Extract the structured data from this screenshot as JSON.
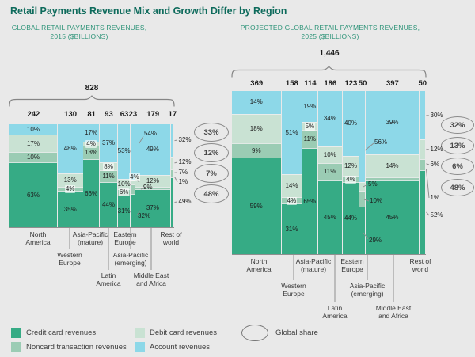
{
  "title": "Retail Payments Revenue Mix and Growth Differ by Region",
  "legend": {
    "items": [
      {
        "label": "Credit card revenues",
        "key": "credit",
        "color": "#36ab85"
      },
      {
        "label": "Noncard transaction revenues",
        "key": "noncard",
        "color": "#9bccb4"
      },
      {
        "label": "Debit card revenues",
        "key": "debit",
        "color": "#c9e2d3"
      },
      {
        "label": "Account revenues",
        "key": "account",
        "color": "#8dd8e8"
      }
    ],
    "global_share_label": "Global share"
  },
  "colors": {
    "account": "#8dd8e8",
    "debit": "#c9e2d3",
    "noncard": "#9bccb4",
    "credit": "#36ab85",
    "sliver": "#9bccb4",
    "background": "#e9e9e9",
    "title": "#0e6b5c",
    "subtitle": "#2f9479"
  },
  "chart_data": [
    {
      "type": "marimekko-stacked-bar",
      "header_lines": [
        "GLOBAL RETAIL PAYMENTS REVENUES,",
        "2015 ($BILLIONS)"
      ],
      "total_label": "828",
      "stack_order_top_to_bottom": [
        "account",
        "debit",
        "noncard",
        "credit"
      ],
      "columns": [
        {
          "value": "242",
          "region": [
            "North",
            "America"
          ],
          "segments": [
            {
              "k": "account",
              "v": 10
            },
            {
              "k": "debit",
              "v": 17
            },
            {
              "k": "noncard",
              "v": 10
            },
            {
              "k": "credit",
              "v": 63
            }
          ]
        },
        {
          "value": "130",
          "region": [
            "Western",
            "Europe"
          ],
          "segments": [
            {
              "k": "account",
              "v": 48
            },
            {
              "k": "debit",
              "v": 13
            },
            {
              "k": "noncard",
              "v": 4
            },
            {
              "k": "credit",
              "v": 35
            }
          ]
        },
        {
          "value": "81",
          "region": [
            "Asia-Pacific",
            "(mature)"
          ],
          "segments": [
            {
              "k": "account",
              "v": 17
            },
            {
              "k": "debit",
              "v": 4
            },
            {
              "k": "noncard",
              "v": 13
            },
            {
              "k": "credit",
              "v": 66
            }
          ]
        },
        {
          "value": "93",
          "region": [
            "Latin",
            "America"
          ],
          "segments": [
            {
              "k": "account",
              "v": 37
            },
            {
              "k": "debit",
              "v": 8
            },
            {
              "k": "noncard",
              "v": 11
            },
            {
              "k": "credit",
              "v": 44
            }
          ]
        },
        {
          "value": "63",
          "region": [
            "Eastern",
            "Europe"
          ],
          "segments": [
            {
              "k": "account",
              "v": 53
            },
            {
              "k": "debit",
              "v": 10
            },
            {
              "k": "noncard",
              "v": 6
            },
            {
              "k": "credit",
              "v": 31
            }
          ]
        },
        {
          "value": "23",
          "region": [
            "Asia-Pacific",
            "(emerging)"
          ],
          "label_mode": "callout",
          "segments": [
            {
              "k": "account",
              "v": 54
            },
            {
              "k": "debit",
              "v": 4
            },
            {
              "k": "noncard",
              "v": 9
            },
            {
              "k": "credit",
              "v": 32
            }
          ]
        },
        {
          "value": "179",
          "region": [
            "Middle East",
            "and Africa"
          ],
          "segments": [
            {
              "k": "account",
              "v": 49
            },
            {
              "k": "debit",
              "v": 12
            },
            {
              "k": "noncard",
              "v": 2,
              "hide": true
            },
            {
              "k": "credit",
              "v": 37
            }
          ]
        },
        {
          "value": "17",
          "region": [
            "Rest of",
            "world"
          ],
          "label_mode": "right",
          "segments": [
            {
              "k": "account",
              "v": 32
            },
            {
              "k": "debit",
              "v": 12
            },
            {
              "k": "noncard",
              "v": 7
            },
            {
              "k": "sliver",
              "v": 1
            },
            {
              "k": "credit",
              "v": 49
            }
          ]
        }
      ],
      "right_labels": [
        "32%",
        "12%",
        "7%",
        "1%",
        "49%"
      ],
      "global_share": [
        "33%",
        "12%",
        "7%",
        "48%"
      ]
    },
    {
      "type": "marimekko-stacked-bar",
      "header_lines": [
        "PROJECTED GLOBAL RETAIL PAYMENTS REVENUES,",
        "2025 ($BILLIONS)"
      ],
      "total_label": "1,446",
      "stack_order_top_to_bottom": [
        "account",
        "debit",
        "noncard",
        "credit"
      ],
      "columns": [
        {
          "value": "369",
          "region": [
            "North",
            "America"
          ],
          "segments": [
            {
              "k": "account",
              "v": 14
            },
            {
              "k": "debit",
              "v": 18
            },
            {
              "k": "noncard",
              "v": 9
            },
            {
              "k": "credit",
              "v": 59
            }
          ]
        },
        {
          "value": "158",
          "region": [
            "Western",
            "Europe"
          ],
          "segments": [
            {
              "k": "account",
              "v": 51
            },
            {
              "k": "debit",
              "v": 14
            },
            {
              "k": "noncard",
              "v": 4
            },
            {
              "k": "credit",
              "v": 31
            }
          ]
        },
        {
          "value": "114",
          "region": [
            "Asia-Pacific",
            "(mature)"
          ],
          "segments": [
            {
              "k": "account",
              "v": 19
            },
            {
              "k": "debit",
              "v": 5
            },
            {
              "k": "noncard",
              "v": 11
            },
            {
              "k": "credit",
              "v": 65
            }
          ]
        },
        {
          "value": "186",
          "region": [
            "Latin",
            "America"
          ],
          "segments": [
            {
              "k": "account",
              "v": 34
            },
            {
              "k": "debit",
              "v": 10
            },
            {
              "k": "noncard",
              "v": 11
            },
            {
              "k": "credit",
              "v": 45
            }
          ]
        },
        {
          "value": "123",
          "region": [
            "Eastern",
            "Europe"
          ],
          "segments": [
            {
              "k": "account",
              "v": 40
            },
            {
              "k": "debit",
              "v": 12
            },
            {
              "k": "noncard",
              "v": 4
            },
            {
              "k": "credit",
              "v": 44
            }
          ]
        },
        {
          "value": "50",
          "region": [
            "Asia-Pacific",
            "(emerging)"
          ],
          "label_mode": "callout",
          "segments": [
            {
              "k": "account",
              "v": 56
            },
            {
              "k": "debit",
              "v": 5
            },
            {
              "k": "noncard",
              "v": 10
            },
            {
              "k": "credit",
              "v": 29
            }
          ]
        },
        {
          "value": "397",
          "region": [
            "Middle East",
            "and Africa"
          ],
          "segments": [
            {
              "k": "account",
              "v": 39
            },
            {
              "k": "debit",
              "v": 14
            },
            {
              "k": "noncard",
              "v": 2,
              "hide": true
            },
            {
              "k": "credit",
              "v": 45
            }
          ]
        },
        {
          "value": "50",
          "region": [
            "Rest of",
            "world"
          ],
          "label_mode": "right",
          "segments": [
            {
              "k": "account",
              "v": 30
            },
            {
              "k": "debit",
              "v": 12
            },
            {
              "k": "noncard",
              "v": 6
            },
            {
              "k": "sliver",
              "v": 1
            },
            {
              "k": "credit",
              "v": 52
            }
          ]
        }
      ],
      "right_labels": [
        "30%",
        "12%",
        "6%",
        "1%",
        "52%"
      ],
      "global_share": [
        "32%",
        "13%",
        "6%",
        "48%"
      ]
    }
  ]
}
